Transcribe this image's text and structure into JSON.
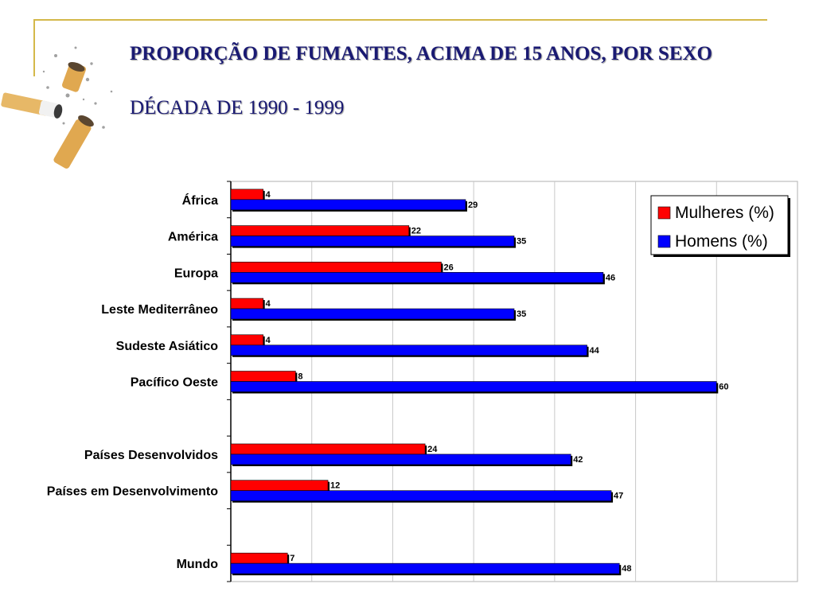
{
  "slide": {
    "title": "PROPORÇÃO DE FUMANTES, ACIMA DE 15 ANOS, POR SEXO",
    "subtitle": "DÉCADA DE 1990 - 1999",
    "decoration": "cigarette-butts-image"
  },
  "colors": {
    "women": "#ff0000",
    "men": "#0000ff",
    "title": "#1a1a73",
    "frame": "#d4b84a",
    "grid": "#c8c8c8"
  },
  "chart_data": {
    "type": "bar",
    "orientation": "horizontal",
    "xlim": [
      0,
      70
    ],
    "gridlines_at": [
      0,
      10,
      20,
      30,
      40,
      50,
      60,
      70
    ],
    "grid": true,
    "legend_position": "top-right",
    "categories": [
      "África",
      "América",
      "Europa",
      "Leste Mediterrâneo",
      "Sudeste Asiático",
      "Pacífico Oeste",
      "",
      "Países Desenvolvidos",
      "Países em Desenvolvimento",
      "",
      "Mundo"
    ],
    "series": [
      {
        "name": "Mulheres (%)",
        "values": [
          4,
          22,
          26,
          4,
          4,
          8,
          null,
          24,
          12,
          null,
          7
        ]
      },
      {
        "name": "Homens (%)",
        "values": [
          29,
          35,
          46,
          35,
          44,
          60,
          null,
          42,
          47,
          null,
          48
        ]
      }
    ]
  }
}
